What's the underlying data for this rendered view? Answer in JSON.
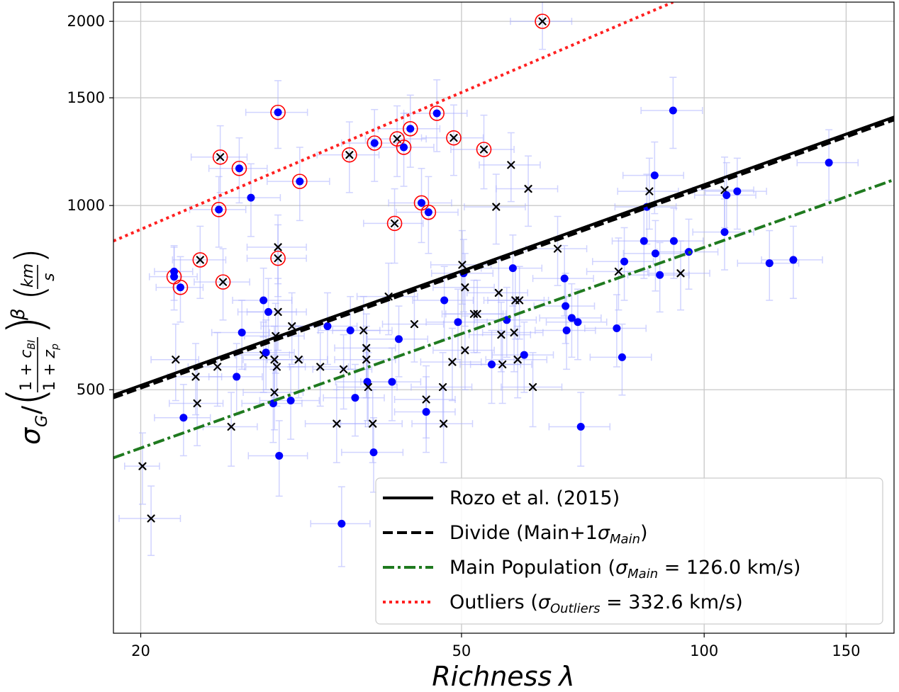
{
  "chart_data": {
    "type": "scatter",
    "xscale": "log",
    "yscale": "log",
    "xlim": [
      18.5,
      172
    ],
    "ylim": [
      200,
      2150
    ],
    "grid": true,
    "x_ticks": [
      {
        "value": 20,
        "label": "20"
      },
      {
        "value": 50,
        "label": "50"
      },
      {
        "value": 100,
        "label": "100"
      },
      {
        "value": 150,
        "label": "150"
      }
    ],
    "y_ticks": [
      {
        "value": 500,
        "label": "500"
      },
      {
        "value": 1000,
        "label": "1000"
      },
      {
        "value": 1500,
        "label": "1500"
      },
      {
        "value": 2000,
        "label": "2000"
      }
    ],
    "xlabel": {
      "main": "Richness",
      "symbol": "λ"
    },
    "ylabel": {
      "sigma": "σ",
      "sigma_sub": "G",
      "slash": "/",
      "frac_num_1": "1 + ",
      "frac_num_c": "c",
      "frac_num_sub": "BI",
      "frac_den_1": "1 + ",
      "frac_den_z": "z",
      "frac_den_sub": "p",
      "beta": "β",
      "unit_num": "km",
      "unit_den": "s"
    },
    "legend": {
      "placement": "lower-right",
      "entries": [
        {
          "label": "Rozo et al. (2015)",
          "color": "#000000",
          "dash": "solid"
        },
        {
          "label": "Divide (Main+1",
          "sym": "σ",
          "sub": "Main",
          "tail": ")",
          "color": "#000000",
          "dash": "dashed"
        },
        {
          "label": "Main Population (",
          "sym": "σ",
          "sub": "Main",
          "tail": " = 126.0 km/s)",
          "color": "#1f7a1f",
          "dash": "dashdot"
        },
        {
          "label": "Outliers (",
          "sym": "σ",
          "sub": "Outliers",
          "tail": " = 332.6 km/s)",
          "color": "#ff2020",
          "dash": "dotted"
        }
      ]
    },
    "lines": [
      {
        "name": "Rozo et al. (2015)",
        "color": "#000000",
        "dash": "solid",
        "points": [
          [
            18.5,
            490
          ],
          [
            172,
            1395
          ]
        ]
      },
      {
        "name": "Divide",
        "color": "#000000",
        "dash": "dashed",
        "points": [
          [
            18.5,
            485
          ],
          [
            172,
            1380
          ]
        ]
      },
      {
        "name": "Main Population",
        "color": "#1f7a1f",
        "dash": "dashdot",
        "points": [
          [
            18.5,
            387
          ],
          [
            172,
            1102
          ]
        ]
      },
      {
        "name": "Outliers",
        "color": "#ff2020",
        "dash": "dotted",
        "points": [
          [
            18.5,
            875
          ],
          [
            91.5,
            2150
          ]
        ]
      }
    ],
    "colors": {
      "dot": "#0000ff",
      "cross": "#000000",
      "errorbar": "#aab0ff",
      "outlier_ring": "#ff0000"
    },
    "points": [
      {
        "x": 22.0,
        "y": 765,
        "m": "dot",
        "ex": 1.5,
        "ey": 90,
        "o": true
      },
      {
        "x": 22.0,
        "y": 780,
        "m": "dot",
        "ex": 1.2,
        "ey": 80,
        "o": false
      },
      {
        "x": 22.4,
        "y": 735,
        "m": "dot",
        "ex": 1.5,
        "ey": 90,
        "o": true
      },
      {
        "x": 23.7,
        "y": 815,
        "m": "cross",
        "ex": 1.8,
        "ey": 110,
        "o": true
      },
      {
        "x": 25.1,
        "y": 1200,
        "m": "cross",
        "ex": 2.0,
        "ey": 150,
        "o": true
      },
      {
        "x": 25.0,
        "y": 985,
        "m": "dot",
        "ex": 2.0,
        "ey": 130,
        "o": true
      },
      {
        "x": 25.3,
        "y": 750,
        "m": "cross",
        "ex": 2.0,
        "ey": 100,
        "o": true
      },
      {
        "x": 26.5,
        "y": 1150,
        "m": "dot",
        "ex": 2.2,
        "ey": 140,
        "o": true
      },
      {
        "x": 29.6,
        "y": 1420,
        "m": "dot",
        "ex": 2.6,
        "ey": 180,
        "o": true
      },
      {
        "x": 29.6,
        "y": 820,
        "m": "cross",
        "ex": 2.5,
        "ey": 110,
        "o": true
      },
      {
        "x": 31.5,
        "y": 1095,
        "m": "dot",
        "ex": 2.8,
        "ey": 150,
        "o": true
      },
      {
        "x": 36.3,
        "y": 1210,
        "m": "cross",
        "ex": 3.2,
        "ey": 160,
        "o": true
      },
      {
        "x": 39.0,
        "y": 1265,
        "m": "dot",
        "ex": 3.5,
        "ey": 170,
        "o": true
      },
      {
        "x": 41.3,
        "y": 935,
        "m": "cross",
        "ex": 3.5,
        "ey": 130,
        "o": true
      },
      {
        "x": 41.6,
        "y": 1285,
        "m": "cross",
        "ex": 3.6,
        "ey": 170,
        "o": true
      },
      {
        "x": 42.4,
        "y": 1245,
        "m": "dot",
        "ex": 3.8,
        "ey": 170,
        "o": true
      },
      {
        "x": 43.2,
        "y": 1335,
        "m": "dot",
        "ex": 3.8,
        "ey": 180,
        "o": true
      },
      {
        "x": 44.6,
        "y": 1010,
        "m": "dot",
        "ex": 4.0,
        "ey": 140,
        "o": true
      },
      {
        "x": 45.5,
        "y": 975,
        "m": "dot",
        "ex": 4.0,
        "ey": 140,
        "o": true
      },
      {
        "x": 46.6,
        "y": 1415,
        "m": "dot",
        "ex": 4.2,
        "ey": 190,
        "o": true
      },
      {
        "x": 48.9,
        "y": 1290,
        "m": "cross",
        "ex": 4.3,
        "ey": 170,
        "o": true
      },
      {
        "x": 53.3,
        "y": 1235,
        "m": "cross",
        "ex": 4.8,
        "ey": 170,
        "o": true
      },
      {
        "x": 63.0,
        "y": 2000,
        "m": "cross",
        "ex": 5.5,
        "ey": 200,
        "o": true
      },
      {
        "x": 20.1,
        "y": 375,
        "m": "cross",
        "ex": 1.0,
        "ey": 50,
        "o": false
      },
      {
        "x": 20.6,
        "y": 308,
        "m": "cross",
        "ex": 1.8,
        "ey": 40,
        "o": false
      },
      {
        "x": 22.1,
        "y": 560,
        "m": "cross",
        "ex": 1.5,
        "ey": 80,
        "o": false
      },
      {
        "x": 22.6,
        "y": 450,
        "m": "dot",
        "ex": 1.8,
        "ey": 60,
        "o": false
      },
      {
        "x": 23.5,
        "y": 475,
        "m": "cross",
        "ex": 1.8,
        "ey": 70,
        "o": false
      },
      {
        "x": 23.4,
        "y": 525,
        "m": "cross",
        "ex": 1.8,
        "ey": 70,
        "o": false
      },
      {
        "x": 24.9,
        "y": 545,
        "m": "cross",
        "ex": 2.0,
        "ey": 75,
        "o": false
      },
      {
        "x": 25.9,
        "y": 435,
        "m": "cross",
        "ex": 2.0,
        "ey": 60,
        "o": false
      },
      {
        "x": 26.3,
        "y": 525,
        "m": "dot",
        "ex": 2.0,
        "ey": 70,
        "o": false
      },
      {
        "x": 26.7,
        "y": 620,
        "m": "dot",
        "ex": 2.2,
        "ey": 80,
        "o": false
      },
      {
        "x": 27.4,
        "y": 1030,
        "m": "dot",
        "ex": 2.4,
        "ey": 140,
        "o": false
      },
      {
        "x": 28.4,
        "y": 570,
        "m": "cross",
        "ex": 2.2,
        "ey": 75,
        "o": false
      },
      {
        "x": 28.4,
        "y": 700,
        "m": "dot",
        "ex": 2.4,
        "ey": 90,
        "o": false
      },
      {
        "x": 28.6,
        "y": 575,
        "m": "dot",
        "ex": 2.4,
        "ey": 75,
        "o": false
      },
      {
        "x": 28.8,
        "y": 670,
        "m": "dot",
        "ex": 2.4,
        "ey": 90,
        "o": false
      },
      {
        "x": 29.2,
        "y": 475,
        "m": "dot",
        "ex": 2.5,
        "ey": 65,
        "o": false
      },
      {
        "x": 29.3,
        "y": 495,
        "m": "cross",
        "ex": 2.5,
        "ey": 65,
        "o": false
      },
      {
        "x": 29.3,
        "y": 560,
        "m": "cross",
        "ex": 2.5,
        "ey": 75,
        "o": false
      },
      {
        "x": 29.4,
        "y": 612,
        "m": "cross",
        "ex": 2.5,
        "ey": 80,
        "o": false
      },
      {
        "x": 29.5,
        "y": 545,
        "m": "cross",
        "ex": 2.5,
        "ey": 75,
        "o": false
      },
      {
        "x": 29.6,
        "y": 670,
        "m": "cross",
        "ex": 2.5,
        "ey": 90,
        "o": false
      },
      {
        "x": 29.6,
        "y": 855,
        "m": "cross",
        "ex": 2.5,
        "ey": 110,
        "o": false
      },
      {
        "x": 29.7,
        "y": 390,
        "m": "dot",
        "ex": 2.5,
        "ey": 55,
        "o": false
      },
      {
        "x": 30.7,
        "y": 480,
        "m": "dot",
        "ex": 2.6,
        "ey": 65,
        "o": false
      },
      {
        "x": 30.8,
        "y": 635,
        "m": "cross",
        "ex": 2.6,
        "ey": 85,
        "o": false
      },
      {
        "x": 31.4,
        "y": 560,
        "m": "cross",
        "ex": 2.7,
        "ey": 75,
        "o": false
      },
      {
        "x": 33.4,
        "y": 545,
        "m": "cross",
        "ex": 2.8,
        "ey": 75,
        "o": false
      },
      {
        "x": 34.1,
        "y": 635,
        "m": "dot",
        "ex": 3.0,
        "ey": 85,
        "o": false
      },
      {
        "x": 35.0,
        "y": 440,
        "m": "cross",
        "ex": 3.0,
        "ey": 60,
        "o": false
      },
      {
        "x": 35.5,
        "y": 302,
        "m": "dot",
        "ex": 3.0,
        "ey": 45,
        "o": false
      },
      {
        "x": 35.7,
        "y": 540,
        "m": "cross",
        "ex": 3.0,
        "ey": 75,
        "o": false
      },
      {
        "x": 36.4,
        "y": 625,
        "m": "dot",
        "ex": 3.2,
        "ey": 85,
        "o": false
      },
      {
        "x": 36.9,
        "y": 485,
        "m": "dot",
        "ex": 3.2,
        "ey": 65,
        "o": false
      },
      {
        "x": 37.8,
        "y": 625,
        "m": "cross",
        "ex": 3.2,
        "ey": 85,
        "o": false
      },
      {
        "x": 38.1,
        "y": 585,
        "m": "cross",
        "ex": 3.3,
        "ey": 80,
        "o": false
      },
      {
        "x": 38.1,
        "y": 560,
        "m": "cross",
        "ex": 3.3,
        "ey": 75,
        "o": false
      },
      {
        "x": 38.2,
        "y": 515,
        "m": "dot",
        "ex": 3.3,
        "ey": 70,
        "o": false
      },
      {
        "x": 38.3,
        "y": 505,
        "m": "cross",
        "ex": 3.3,
        "ey": 70,
        "o": false
      },
      {
        "x": 38.8,
        "y": 440,
        "m": "cross",
        "ex": 3.4,
        "ey": 60,
        "o": false
      },
      {
        "x": 38.9,
        "y": 395,
        "m": "dot",
        "ex": 3.4,
        "ey": 55,
        "o": false
      },
      {
        "x": 40.6,
        "y": 710,
        "m": "cross",
        "ex": 3.5,
        "ey": 95,
        "o": false
      },
      {
        "x": 41.0,
        "y": 515,
        "m": "dot",
        "ex": 3.5,
        "ey": 70,
        "o": false
      },
      {
        "x": 41.8,
        "y": 605,
        "m": "dot",
        "ex": 3.6,
        "ey": 80,
        "o": false
      },
      {
        "x": 43.7,
        "y": 640,
        "m": "cross",
        "ex": 3.8,
        "ey": 85,
        "o": false
      },
      {
        "x": 45.2,
        "y": 460,
        "m": "dot",
        "ex": 3.9,
        "ey": 65,
        "o": false
      },
      {
        "x": 45.2,
        "y": 482,
        "m": "cross",
        "ex": 3.9,
        "ey": 65,
        "o": false
      },
      {
        "x": 47.4,
        "y": 505,
        "m": "cross",
        "ex": 4.1,
        "ey": 70,
        "o": false
      },
      {
        "x": 47.5,
        "y": 440,
        "m": "cross",
        "ex": 4.1,
        "ey": 60,
        "o": false
      },
      {
        "x": 47.6,
        "y": 700,
        "m": "dot",
        "ex": 4.1,
        "ey": 95,
        "o": false
      },
      {
        "x": 48.7,
        "y": 555,
        "m": "cross",
        "ex": 4.2,
        "ey": 75,
        "o": false
      },
      {
        "x": 49.5,
        "y": 645,
        "m": "dot",
        "ex": 4.3,
        "ey": 85,
        "o": false
      },
      {
        "x": 50.1,
        "y": 800,
        "m": "cross",
        "ex": 4.3,
        "ey": 110,
        "o": false
      },
      {
        "x": 50.3,
        "y": 775,
        "m": "dot",
        "ex": 4.4,
        "ey": 105,
        "o": false
      },
      {
        "x": 50.5,
        "y": 735,
        "m": "cross",
        "ex": 4.4,
        "ey": 100,
        "o": false
      },
      {
        "x": 50.5,
        "y": 580,
        "m": "cross",
        "ex": 4.4,
        "ey": 80,
        "o": false
      },
      {
        "x": 51.8,
        "y": 665,
        "m": "cross",
        "ex": 4.5,
        "ey": 90,
        "o": false
      },
      {
        "x": 52.3,
        "y": 665,
        "m": "cross",
        "ex": 4.5,
        "ey": 90,
        "o": false
      },
      {
        "x": 54.5,
        "y": 550,
        "m": "dot",
        "ex": 4.7,
        "ey": 75,
        "o": false
      },
      {
        "x": 55.2,
        "y": 995,
        "m": "cross",
        "ex": 4.8,
        "ey": 130,
        "o": false
      },
      {
        "x": 55.6,
        "y": 720,
        "m": "cross",
        "ex": 4.8,
        "ey": 95,
        "o": false
      },
      {
        "x": 56.0,
        "y": 615,
        "m": "cross",
        "ex": 4.9,
        "ey": 80,
        "o": false
      },
      {
        "x": 56.2,
        "y": 550,
        "m": "cross",
        "ex": 4.9,
        "ey": 75,
        "o": false
      },
      {
        "x": 56.9,
        "y": 650,
        "m": "dot",
        "ex": 5.0,
        "ey": 85,
        "o": false
      },
      {
        "x": 57.6,
        "y": 1165,
        "m": "cross",
        "ex": 5.0,
        "ey": 150,
        "o": false
      },
      {
        "x": 57.9,
        "y": 790,
        "m": "dot",
        "ex": 5.0,
        "ey": 105,
        "o": false
      },
      {
        "x": 58.1,
        "y": 620,
        "m": "cross",
        "ex": 5.0,
        "ey": 85,
        "o": false
      },
      {
        "x": 58.3,
        "y": 700,
        "m": "cross",
        "ex": 5.0,
        "ey": 95,
        "o": false
      },
      {
        "x": 58.7,
        "y": 560,
        "m": "cross",
        "ex": 5.1,
        "ey": 75,
        "o": false
      },
      {
        "x": 59.0,
        "y": 700,
        "m": "cross",
        "ex": 5.1,
        "ey": 95,
        "o": false
      },
      {
        "x": 59.8,
        "y": 570,
        "m": "dot",
        "ex": 5.2,
        "ey": 75,
        "o": false
      },
      {
        "x": 60.5,
        "y": 1065,
        "m": "cross",
        "ex": 5.3,
        "ey": 140,
        "o": false
      },
      {
        "x": 61.3,
        "y": 505,
        "m": "cross",
        "ex": 5.3,
        "ey": 70,
        "o": false
      },
      {
        "x": 65.8,
        "y": 850,
        "m": "cross",
        "ex": 5.7,
        "ey": 110,
        "o": false
      },
      {
        "x": 67.1,
        "y": 760,
        "m": "dot",
        "ex": 5.8,
        "ey": 100,
        "o": false
      },
      {
        "x": 67.3,
        "y": 685,
        "m": "dot",
        "ex": 5.8,
        "ey": 90,
        "o": false
      },
      {
        "x": 67.5,
        "y": 625,
        "m": "dot",
        "ex": 5.8,
        "ey": 85,
        "o": false
      },
      {
        "x": 68.5,
        "y": 655,
        "m": "dot",
        "ex": 6.0,
        "ey": 90,
        "o": false
      },
      {
        "x": 69.7,
        "y": 645,
        "m": "dot",
        "ex": 6.0,
        "ey": 85,
        "o": false
      },
      {
        "x": 70.3,
        "y": 435,
        "m": "dot",
        "ex": 6.1,
        "ey": 60,
        "o": false
      },
      {
        "x": 77.9,
        "y": 630,
        "m": "dot",
        "ex": 6.8,
        "ey": 85,
        "o": false
      },
      {
        "x": 78.3,
        "y": 780,
        "m": "cross",
        "ex": 6.8,
        "ey": 105,
        "o": false
      },
      {
        "x": 79.1,
        "y": 565,
        "m": "dot",
        "ex": 6.9,
        "ey": 75,
        "o": false
      },
      {
        "x": 79.6,
        "y": 810,
        "m": "dot",
        "ex": 6.9,
        "ey": 110,
        "o": false
      },
      {
        "x": 84.2,
        "y": 875,
        "m": "dot",
        "ex": 7.3,
        "ey": 115,
        "o": false
      },
      {
        "x": 84.9,
        "y": 995,
        "m": "dot",
        "ex": 7.4,
        "ey": 130,
        "o": false
      },
      {
        "x": 85.5,
        "y": 1055,
        "m": "cross",
        "ex": 7.4,
        "ey": 140,
        "o": false
      },
      {
        "x": 86.8,
        "y": 1120,
        "m": "dot",
        "ex": 7.5,
        "ey": 150,
        "o": false
      },
      {
        "x": 87.0,
        "y": 835,
        "m": "dot",
        "ex": 7.6,
        "ey": 110,
        "o": false
      },
      {
        "x": 88.1,
        "y": 770,
        "m": "dot",
        "ex": 7.7,
        "ey": 100,
        "o": false
      },
      {
        "x": 91.5,
        "y": 1430,
        "m": "dot",
        "ex": 8.0,
        "ey": 190,
        "o": false
      },
      {
        "x": 91.7,
        "y": 875,
        "m": "dot",
        "ex": 8.0,
        "ey": 115,
        "o": false
      },
      {
        "x": 93.5,
        "y": 775,
        "m": "cross",
        "ex": 8.1,
        "ey": 100,
        "o": false
      },
      {
        "x": 95.7,
        "y": 840,
        "m": "dot",
        "ex": 8.3,
        "ey": 110,
        "o": false
      },
      {
        "x": 106.0,
        "y": 1060,
        "m": "cross",
        "ex": 9.2,
        "ey": 140,
        "o": false
      },
      {
        "x": 106.6,
        "y": 1040,
        "m": "dot",
        "ex": 9.3,
        "ey": 135,
        "o": false
      },
      {
        "x": 106.0,
        "y": 905,
        "m": "dot",
        "ex": 9.2,
        "ey": 120,
        "o": false
      },
      {
        "x": 109.9,
        "y": 1055,
        "m": "dot",
        "ex": 9.6,
        "ey": 140,
        "o": false
      },
      {
        "x": 120.5,
        "y": 805,
        "m": "dot",
        "ex": 10.5,
        "ey": 105,
        "o": false
      },
      {
        "x": 129.0,
        "y": 815,
        "m": "dot",
        "ex": 11.2,
        "ey": 110,
        "o": false
      },
      {
        "x": 142.8,
        "y": 1175,
        "m": "dot",
        "ex": 12.4,
        "ey": 155,
        "o": false
      }
    ]
  }
}
